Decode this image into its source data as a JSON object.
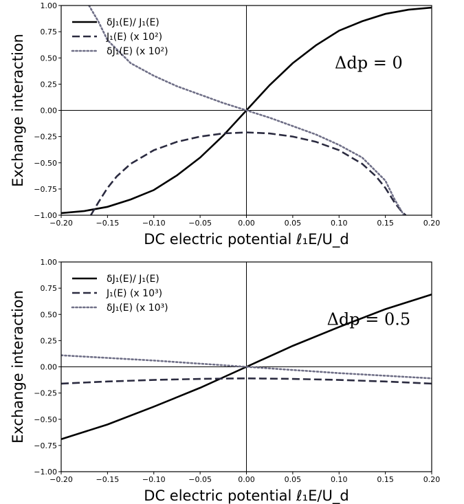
{
  "chart_data": [
    {
      "type": "line",
      "xlabel": "DC electric potential ℓ₁E/U_d",
      "ylabel": "Exchange interaction",
      "xlim": [
        -0.2,
        0.2
      ],
      "ylim": [
        -1.0,
        1.0
      ],
      "x_ticks": [
        "−0.20",
        "−0.15",
        "−0.10",
        "−0.05",
        "0.00",
        "0.05",
        "0.10",
        "0.15",
        "0.20"
      ],
      "y_ticks": [
        "−1.00",
        "−0.75",
        "−0.50",
        "−0.25",
        "0.00",
        "0.25",
        "0.50",
        "0.75",
        "1.00"
      ],
      "annotation": "Δdp = 0",
      "legend_position": "top-left",
      "reference_lines": [
        "x = 0",
        "y = 0"
      ],
      "series": [
        {
          "name": "δJ₁(E)/ J₁(E)",
          "style": "solid",
          "color": "#000000",
          "x": [
            -0.2,
            -0.175,
            -0.15,
            -0.125,
            -0.1,
            -0.075,
            -0.05,
            -0.025,
            0.0,
            0.025,
            0.05,
            0.075,
            0.1,
            0.125,
            0.15,
            0.175,
            0.2
          ],
          "y": [
            -0.98,
            -0.96,
            -0.92,
            -0.85,
            -0.76,
            -0.62,
            -0.45,
            -0.24,
            0.0,
            0.24,
            0.45,
            0.62,
            0.76,
            0.85,
            0.92,
            0.96,
            0.98
          ]
        },
        {
          "name": "J₁(E) (x 10²)",
          "style": "dashed",
          "color": "#2b2b40",
          "x": [
            -0.168,
            -0.16,
            -0.15,
            -0.14,
            -0.125,
            -0.1,
            -0.075,
            -0.05,
            -0.025,
            0.0,
            0.025,
            0.05,
            0.075,
            0.1,
            0.125,
            0.14,
            0.15,
            0.16,
            0.168,
            0.172
          ],
          "y": [
            -1.0,
            -0.88,
            -0.74,
            -0.63,
            -0.51,
            -0.38,
            -0.3,
            -0.25,
            -0.22,
            -0.21,
            -0.22,
            -0.25,
            -0.3,
            -0.38,
            -0.51,
            -0.63,
            -0.74,
            -0.88,
            -0.97,
            -1.0
          ]
        },
        {
          "name": "δJ₁(E) (x 10²)",
          "style": "dotted",
          "color": "#6e6e86",
          "x": [
            -0.17,
            -0.16,
            -0.15,
            -0.125,
            -0.1,
            -0.075,
            -0.05,
            -0.025,
            0.0,
            0.025,
            0.05,
            0.075,
            0.1,
            0.125,
            0.15,
            0.16,
            0.17
          ],
          "y": [
            1.0,
            0.85,
            0.67,
            0.45,
            0.33,
            0.23,
            0.15,
            0.07,
            0.0,
            -0.07,
            -0.15,
            -0.23,
            -0.33,
            -0.45,
            -0.67,
            -0.85,
            -1.0
          ]
        }
      ]
    },
    {
      "type": "line",
      "xlabel": "DC electric potential ℓ₁E/U_d",
      "ylabel": "Exchange interaction",
      "xlim": [
        -0.2,
        0.2
      ],
      "ylim": [
        -1.0,
        1.0
      ],
      "x_ticks": [
        "−0.20",
        "−0.15",
        "−0.10",
        "−0.05",
        "0.00",
        "0.05",
        "0.10",
        "0.15",
        "0.20"
      ],
      "y_ticks": [
        "−1.00",
        "−0.75",
        "−0.50",
        "−0.25",
        "0.00",
        "0.25",
        "0.50",
        "0.75",
        "1.00"
      ],
      "annotation": "Δdp = 0.5",
      "legend_position": "top-left",
      "reference_lines": [
        "x = 0",
        "y = 0"
      ],
      "series": [
        {
          "name": "δJ₁(E)/ J₁(E)",
          "style": "solid",
          "color": "#000000",
          "x": [
            -0.2,
            -0.15,
            -0.1,
            -0.05,
            0.0,
            0.05,
            0.1,
            0.15,
            0.2
          ],
          "y": [
            -0.69,
            -0.55,
            -0.38,
            -0.2,
            0.0,
            0.2,
            0.38,
            0.55,
            0.69
          ]
        },
        {
          "name": "J₁(E) (x 10³)",
          "style": "dashed",
          "color": "#2b2b40",
          "x": [
            -0.2,
            -0.15,
            -0.1,
            -0.05,
            0.0,
            0.05,
            0.1,
            0.15,
            0.2
          ],
          "y": [
            -0.16,
            -0.14,
            -0.125,
            -0.115,
            -0.11,
            -0.115,
            -0.125,
            -0.14,
            -0.16
          ]
        },
        {
          "name": "δJ₁(E) (x 10³)",
          "style": "dotted",
          "color": "#6e6e86",
          "x": [
            -0.2,
            -0.15,
            -0.1,
            -0.05,
            0.0,
            0.05,
            0.1,
            0.15,
            0.2
          ],
          "y": [
            0.11,
            0.085,
            0.06,
            0.03,
            0.0,
            -0.03,
            -0.06,
            -0.085,
            -0.11
          ]
        }
      ]
    }
  ]
}
